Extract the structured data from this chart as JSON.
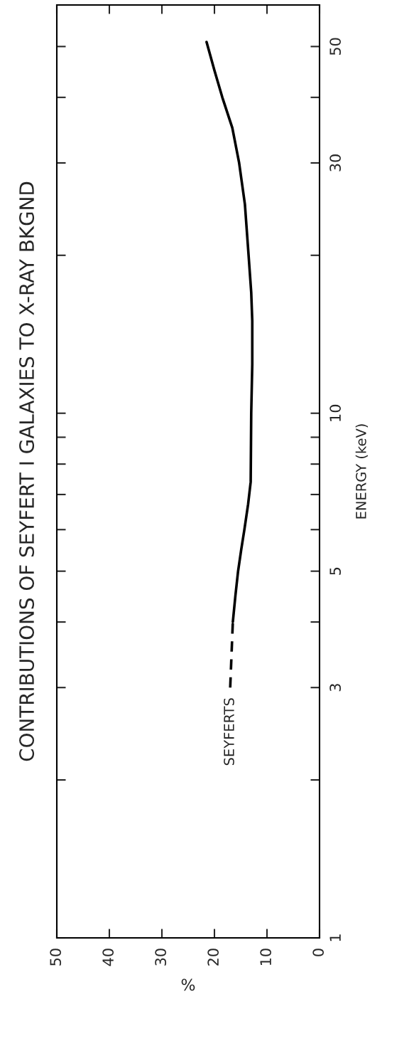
{
  "chart_data": {
    "type": "line",
    "title": "CONTRIBUTIONS OF SEYFERT I GALAXIES TO X-RAY BKGND",
    "xlabel": "%",
    "ylabel": "ENERGY (keV)",
    "log": "y",
    "ylim": [
      1,
      60
    ],
    "yticks": [
      1,
      {
        "value": 2,
        "label": null
      },
      3,
      {
        "value": 4,
        "label": null
      },
      5,
      {
        "value": 6,
        "label": null
      },
      {
        "value": 7,
        "label": null
      },
      {
        "value": 8,
        "label": null
      },
      {
        "value": 9,
        "label": null
      },
      10,
      {
        "value": 20,
        "label": null
      },
      30,
      {
        "value": 40,
        "label": null
      },
      50
    ],
    "xlim": [
      50,
      0
    ],
    "xticks": [
      50,
      40,
      30,
      20,
      10,
      0
    ],
    "grid": false,
    "series": [
      {
        "color": "#000000",
        "line_style": "solid",
        "x": [
          16.5,
          16.0,
          15.5,
          14.9,
          14.3,
          13.6,
          13.1,
          13.0,
          12.8,
          12.8,
          13.0,
          13.5,
          14.2,
          15.3,
          16.6,
          18.5,
          20.0,
          21.5
        ],
        "values": [
          4,
          4.5,
          5,
          5.5,
          6,
          6.7,
          7.4,
          10,
          12.4,
          15,
          17,
          20,
          25,
          30,
          35,
          40,
          45,
          51
        ]
      },
      {
        "color": "#000000",
        "line_style": "dashed",
        "x": [
          17.0,
          16.5
        ],
        "values": [
          3,
          4
        ]
      }
    ],
    "annotations": [
      {
        "text": "SEYFERTS",
        "x": 17,
        "y": 3
      }
    ]
  }
}
